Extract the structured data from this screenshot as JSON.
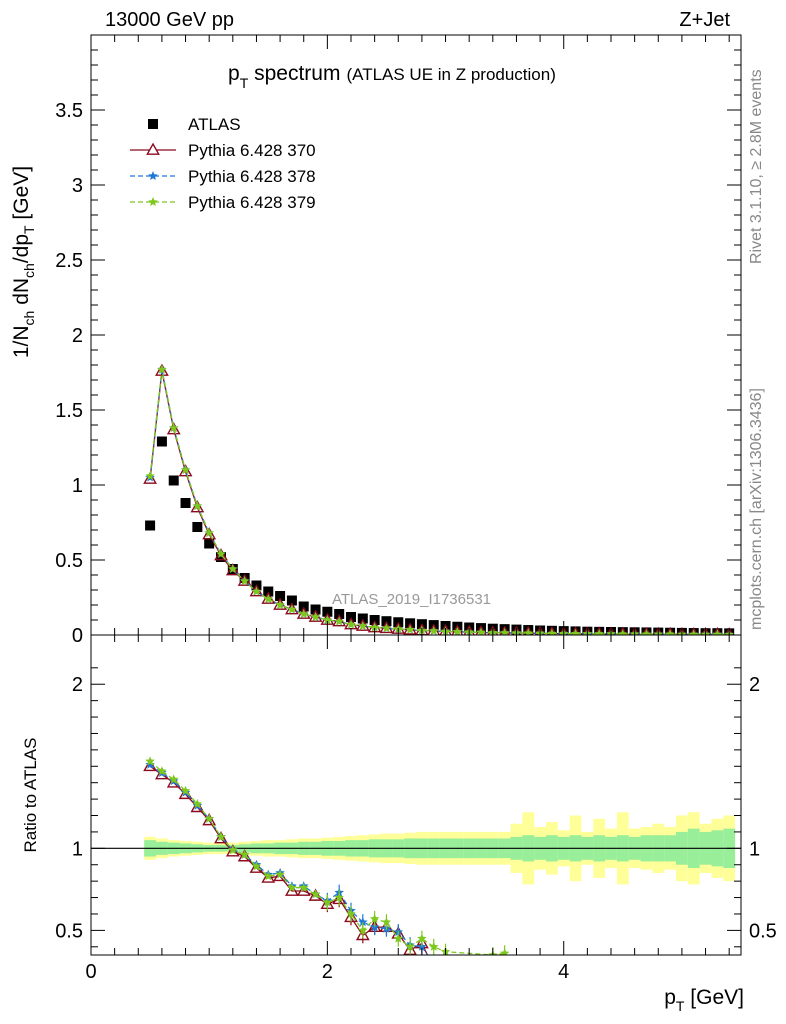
{
  "header": {
    "left": "13000 GeV pp",
    "right": "Z+Jet"
  },
  "side_text": {
    "rivet": "Rivet 3.1.10, ≥ 2.8M events",
    "mcplots": "mcplots.cern.ch [arXiv:1306.3436]"
  },
  "watermark": "ATLAS_2019_I1736531",
  "chart_data": [
    {
      "type": "scatter",
      "title_main": "p",
      "title_sub": "T",
      "title_rest": " spectrum",
      "title_note": "(ATLAS UE in Z production)",
      "ylabel": "1/N_ch dN_ch/dp_T [GeV]",
      "xlim": [
        0,
        5.5
      ],
      "ylim": [
        0,
        4.0
      ],
      "yticks": [
        0,
        0.5,
        1,
        1.5,
        2,
        2.5,
        3,
        3.5
      ],
      "ytick_labels": [
        "0",
        "0.5",
        "1",
        "1.5",
        "2",
        "2.5",
        "3",
        "3.5"
      ],
      "legend": [
        "ATLAS",
        "Pythia 6.428 370",
        "Pythia 6.428 378",
        "Pythia 6.428 379"
      ],
      "series": [
        {
          "name": "ATLAS",
          "color": "#000000",
          "x": [
            0.5,
            0.6,
            0.7,
            0.8,
            0.9,
            1.0,
            1.1,
            1.2,
            1.3,
            1.4,
            1.5,
            1.6,
            1.7,
            1.8,
            1.9,
            2.0,
            2.1,
            2.2,
            2.3,
            2.4,
            2.5,
            2.6,
            2.7,
            2.8,
            2.9,
            3.0,
            3.1,
            3.2,
            3.3,
            3.4,
            3.5,
            3.6,
            3.7,
            3.8,
            3.9,
            4.0,
            4.1,
            4.2,
            4.3,
            4.4,
            4.5,
            4.6,
            4.7,
            4.8,
            4.9,
            5.0,
            5.1,
            5.2,
            5.3,
            5.4
          ],
          "y": [
            0.73,
            1.29,
            1.03,
            0.88,
            0.72,
            0.61,
            0.52,
            0.44,
            0.38,
            0.33,
            0.29,
            0.26,
            0.23,
            0.19,
            0.17,
            0.155,
            0.14,
            0.12,
            0.11,
            0.1,
            0.092,
            0.085,
            0.078,
            0.072,
            0.066,
            0.06,
            0.055,
            0.05,
            0.046,
            0.042,
            0.039,
            0.036,
            0.033,
            0.03,
            0.028,
            0.026,
            0.024,
            0.022,
            0.021,
            0.02,
            0.019,
            0.018,
            0.017,
            0.016,
            0.015,
            0.014,
            0.013,
            0.012,
            0.012,
            0.011
          ]
        },
        {
          "name": "Pythia 6.428 370",
          "color": "#8b0a1e",
          "x": [
            0.5,
            0.6,
            0.7,
            0.8,
            0.9,
            1.0,
            1.1,
            1.2,
            1.3,
            1.4,
            1.5,
            1.6,
            1.7,
            1.8,
            1.9,
            2.0,
            2.1,
            2.2,
            2.3,
            2.4,
            2.5,
            2.6,
            2.7,
            2.8,
            2.9,
            3.0,
            3.1,
            3.2,
            3.3,
            3.4,
            3.5,
            3.6,
            3.7,
            3.8,
            3.9,
            4.0,
            4.1,
            4.2,
            4.3,
            4.4,
            4.5,
            4.6,
            4.7,
            4.8,
            4.9,
            5.0,
            5.1,
            5.2,
            5.3,
            5.4
          ],
          "y": [
            1.04,
            1.76,
            1.37,
            1.09,
            0.85,
            0.67,
            0.53,
            0.43,
            0.36,
            0.29,
            0.24,
            0.2,
            0.17,
            0.14,
            0.12,
            0.1,
            0.09,
            0.07,
            0.06,
            0.05,
            0.045,
            0.04,
            0.035,
            0.03,
            0.027,
            0.024,
            0.021,
            0.019,
            0.017,
            0.015,
            0.014,
            0.013,
            0.012,
            0.011,
            0.01,
            0.009,
            0.008,
            0.008,
            0.007,
            0.007,
            0.006,
            0.006,
            0.005,
            0.005,
            0.005,
            0.004,
            0.004,
            0.004,
            0.004,
            0.003
          ]
        },
        {
          "name": "Pythia 6.428 378",
          "color": "#1f78d6",
          "x": [
            0.5,
            0.6,
            0.7,
            0.8,
            0.9,
            1.0,
            1.1,
            1.2,
            1.3,
            1.4,
            1.5,
            1.6,
            1.7,
            1.8,
            1.9,
            2.0,
            2.1,
            2.2,
            2.3,
            2.4,
            2.5,
            2.6,
            2.7,
            2.8,
            2.9,
            3.0,
            3.1,
            3.2,
            3.3,
            3.4,
            3.5,
            3.6,
            3.7,
            3.8,
            3.9,
            4.0,
            4.1,
            4.2,
            4.3,
            4.4,
            4.5,
            4.6,
            4.7,
            4.8,
            4.9,
            5.0,
            5.1,
            5.2,
            5.3,
            5.4
          ],
          "y": [
            1.05,
            1.77,
            1.38,
            1.1,
            0.86,
            0.68,
            0.54,
            0.44,
            0.36,
            0.29,
            0.24,
            0.2,
            0.17,
            0.14,
            0.12,
            0.1,
            0.09,
            0.07,
            0.06,
            0.05,
            0.045,
            0.04,
            0.035,
            0.03,
            0.027,
            0.024,
            0.021,
            0.019,
            0.017,
            0.015,
            0.014,
            0.013,
            0.012,
            0.011,
            0.01,
            0.009,
            0.008,
            0.008,
            0.007,
            0.007,
            0.006,
            0.006,
            0.005,
            0.005,
            0.005,
            0.004,
            0.004,
            0.004,
            0.004,
            0.003
          ]
        },
        {
          "name": "Pythia 6.428 379",
          "color": "#7ec81e",
          "x": [
            0.5,
            0.6,
            0.7,
            0.8,
            0.9,
            1.0,
            1.1,
            1.2,
            1.3,
            1.4,
            1.5,
            1.6,
            1.7,
            1.8,
            1.9,
            2.0,
            2.1,
            2.2,
            2.3,
            2.4,
            2.5,
            2.6,
            2.7,
            2.8,
            2.9,
            3.0,
            3.1,
            3.2,
            3.3,
            3.4,
            3.5,
            3.6,
            3.7,
            3.8,
            3.9,
            4.0,
            4.1,
            4.2,
            4.3,
            4.4,
            4.5,
            4.6,
            4.7,
            4.8,
            4.9,
            5.0,
            5.1,
            5.2,
            5.3,
            5.4
          ],
          "y": [
            1.06,
            1.77,
            1.38,
            1.1,
            0.86,
            0.68,
            0.54,
            0.44,
            0.36,
            0.29,
            0.24,
            0.2,
            0.17,
            0.14,
            0.12,
            0.1,
            0.09,
            0.07,
            0.06,
            0.05,
            0.045,
            0.04,
            0.035,
            0.03,
            0.027,
            0.024,
            0.021,
            0.019,
            0.017,
            0.015,
            0.014,
            0.013,
            0.012,
            0.011,
            0.01,
            0.009,
            0.008,
            0.008,
            0.007,
            0.007,
            0.006,
            0.006,
            0.005,
            0.005,
            0.005,
            0.004,
            0.004,
            0.004,
            0.004,
            0.003
          ]
        }
      ]
    },
    {
      "type": "scatter",
      "ylabel": "Ratio to ATLAS",
      "xlabel_main": "p",
      "xlabel_sub": "T",
      "xlabel_rest": " [GeV]",
      "xlim": [
        0,
        5.5
      ],
      "ylim": [
        0.35,
        2.3
      ],
      "xticks": [
        0,
        2,
        4
      ],
      "xtick_labels": [
        "0",
        "2",
        "4"
      ],
      "yticks": [
        0.5,
        1,
        2
      ],
      "ytick_labels": [
        "0.5",
        "1",
        "2"
      ],
      "reference_line": 1,
      "bands": {
        "x": [
          0.5,
          0.6,
          0.7,
          0.8,
          0.9,
          1.0,
          1.1,
          1.2,
          1.3,
          1.4,
          1.5,
          1.6,
          1.7,
          1.8,
          1.9,
          2.0,
          2.1,
          2.2,
          2.3,
          2.4,
          2.5,
          2.6,
          2.7,
          2.8,
          2.9,
          3.0,
          3.1,
          3.2,
          3.3,
          3.4,
          3.5,
          3.6,
          3.7,
          3.8,
          3.9,
          4.0,
          4.1,
          4.2,
          4.3,
          4.4,
          4.5,
          4.6,
          4.7,
          4.8,
          4.9,
          5.0,
          5.1,
          5.2,
          5.3,
          5.4
        ],
        "yellow_half": [
          0.07,
          0.06,
          0.05,
          0.045,
          0.04,
          0.035,
          0.035,
          0.035,
          0.04,
          0.045,
          0.05,
          0.05,
          0.055,
          0.06,
          0.06,
          0.065,
          0.07,
          0.075,
          0.08,
          0.085,
          0.09,
          0.09,
          0.095,
          0.1,
          0.1,
          0.1,
          0.1,
          0.1,
          0.1,
          0.1,
          0.1,
          0.15,
          0.22,
          0.13,
          0.16,
          0.11,
          0.2,
          0.1,
          0.18,
          0.12,
          0.22,
          0.12,
          0.13,
          0.15,
          0.13,
          0.2,
          0.22,
          0.15,
          0.18,
          0.2
        ],
        "green_half": [
          0.05,
          0.04,
          0.035,
          0.03,
          0.025,
          0.02,
          0.02,
          0.02,
          0.025,
          0.03,
          0.03,
          0.035,
          0.035,
          0.04,
          0.04,
          0.045,
          0.045,
          0.05,
          0.05,
          0.055,
          0.055,
          0.055,
          0.06,
          0.06,
          0.06,
          0.06,
          0.06,
          0.06,
          0.06,
          0.06,
          0.06,
          0.07,
          0.08,
          0.07,
          0.08,
          0.07,
          0.08,
          0.07,
          0.08,
          0.07,
          0.08,
          0.07,
          0.08,
          0.08,
          0.08,
          0.1,
          0.12,
          0.1,
          0.11,
          0.12
        ]
      },
      "series": [
        {
          "name": "Pythia 6.428 370",
          "color": "#8b0a1e",
          "x": [
            0.5,
            0.6,
            0.7,
            0.8,
            0.9,
            1.0,
            1.1,
            1.2,
            1.3,
            1.4,
            1.5,
            1.6,
            1.7,
            1.8,
            1.9,
            2.0,
            2.1,
            2.2,
            2.3,
            2.4,
            2.5,
            2.6,
            2.7,
            2.8,
            2.9
          ],
          "y": [
            1.5,
            1.45,
            1.4,
            1.33,
            1.25,
            1.17,
            1.06,
            0.98,
            0.95,
            0.88,
            0.82,
            0.83,
            0.74,
            0.74,
            0.71,
            0.66,
            0.69,
            0.58,
            0.47,
            0.52,
            0.52,
            0.48,
            0.38,
            0.42,
            0.27
          ]
        },
        {
          "name": "Pythia 6.428 378",
          "color": "#1f78d6",
          "x": [
            0.5,
            0.6,
            0.7,
            0.8,
            0.9,
            1.0,
            1.1,
            1.2,
            1.3,
            1.4,
            1.5,
            1.6,
            1.7,
            1.8,
            1.9,
            2.0,
            2.1,
            2.2,
            2.3,
            2.4,
            2.5,
            2.6,
            2.7,
            2.8,
            2.9
          ],
          "y": [
            1.51,
            1.46,
            1.41,
            1.34,
            1.26,
            1.18,
            1.07,
            0.99,
            0.96,
            0.9,
            0.84,
            0.85,
            0.77,
            0.77,
            0.72,
            0.68,
            0.73,
            0.62,
            0.55,
            0.52,
            0.51,
            0.49,
            0.41,
            0.4,
            0.3
          ]
        },
        {
          "name": "Pythia 6.428 379",
          "color": "#7ec81e",
          "x": [
            0.5,
            0.6,
            0.7,
            0.8,
            0.9,
            1.0,
            1.1,
            1.2,
            1.3,
            1.4,
            1.5,
            1.6,
            1.7,
            1.8,
            1.9,
            2.0,
            2.1,
            2.2,
            2.3,
            2.4,
            2.5,
            2.6,
            2.7,
            2.8,
            2.9,
            3.0,
            3.4,
            3.5
          ],
          "y": [
            1.53,
            1.47,
            1.42,
            1.35,
            1.27,
            1.18,
            1.07,
            0.99,
            0.96,
            0.89,
            0.83,
            0.84,
            0.76,
            0.76,
            0.72,
            0.67,
            0.7,
            0.6,
            0.5,
            0.57,
            0.55,
            0.45,
            0.4,
            0.45,
            0.4,
            0.37,
            0.35,
            0.36
          ]
        }
      ]
    }
  ]
}
